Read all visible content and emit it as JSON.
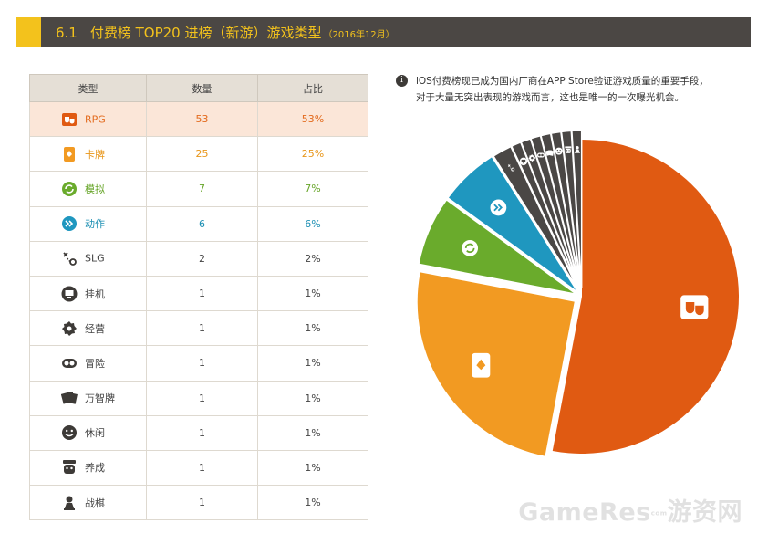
{
  "header": {
    "number": "6.1",
    "title": "付费榜 TOP20 进榜（新游）游戏类型",
    "subtitle": "（2016年12月）"
  },
  "table": {
    "headers": [
      "类型",
      "数量",
      "占比"
    ],
    "rows": [
      {
        "type": "RPG",
        "count": "53",
        "pct": "53%",
        "icon": "rpg-mask-icon"
      },
      {
        "type": "卡牌",
        "count": "25",
        "pct": "25%",
        "icon": "card-icon"
      },
      {
        "type": "模拟",
        "count": "7",
        "pct": "7%",
        "icon": "sim-cycle-icon"
      },
      {
        "type": "动作",
        "count": "6",
        "pct": "6%",
        "icon": "action-arrows-icon"
      },
      {
        "type": "SLG",
        "count": "2",
        "pct": "2%",
        "icon": "strategy-icon"
      },
      {
        "type": "挂机",
        "count": "1",
        "pct": "1%",
        "icon": "monitor-icon"
      },
      {
        "type": "经营",
        "count": "1",
        "pct": "1%",
        "icon": "gear-icon"
      },
      {
        "type": "冒险",
        "count": "1",
        "pct": "1%",
        "icon": "goggles-icon"
      },
      {
        "type": "万智牌",
        "count": "1",
        "pct": "1%",
        "icon": "cards-fan-icon"
      },
      {
        "type": "休闲",
        "count": "1",
        "pct": "1%",
        "icon": "smile-icon"
      },
      {
        "type": "养成",
        "count": "1",
        "pct": "1%",
        "icon": "character-icon"
      },
      {
        "type": "战棋",
        "count": "1",
        "pct": "1%",
        "icon": "chess-pawn-icon"
      }
    ]
  },
  "note": {
    "line1": "iOS付费榜现已成为国内厂商在APP Store验证游戏质量的重要手段，",
    "line2": "对于大量无突出表现的游戏而言，这也是唯一的一次曝光机会。"
  },
  "watermark": {
    "brand": "GameRes",
    "small": "com",
    "cn": "游资网"
  },
  "colors": {
    "rpg": "#e05a12",
    "card": "#f29a22",
    "sim": "#6aab2c",
    "act": "#1f97bf",
    "other": "#4a4745",
    "header_bg": "#4b4744",
    "header_fg": "#f3c21c"
  },
  "chart_data": {
    "type": "pie",
    "categories": [
      "RPG",
      "卡牌",
      "模拟",
      "动作",
      "SLG",
      "挂机",
      "经营",
      "冒险",
      "万智牌",
      "休闲",
      "养成",
      "战棋"
    ],
    "values": [
      53,
      25,
      7,
      6,
      2,
      1,
      1,
      1,
      1,
      1,
      1,
      1
    ],
    "percent": [
      "53%",
      "25%",
      "7%",
      "6%",
      "2%",
      "1%",
      "1%",
      "1%",
      "1%",
      "1%",
      "1%",
      "1%"
    ]
  }
}
